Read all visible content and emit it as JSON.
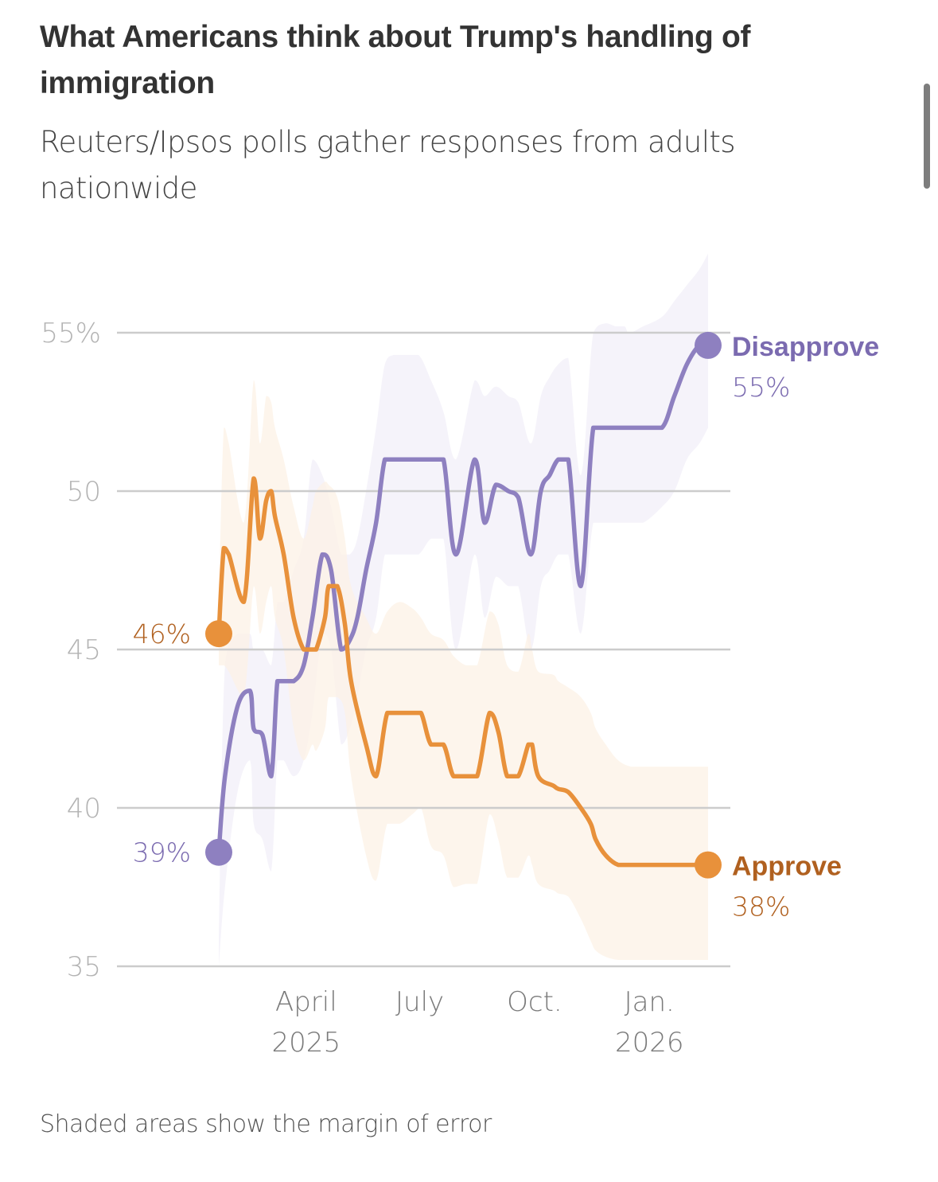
{
  "header": {
    "title": "What Americans think about Trump's handling of immigration",
    "subtitle": "Reuters/Ipsos polls gather responses from adults nationwide"
  },
  "footer": {
    "note": "Shaded areas show the margin of error"
  },
  "colors": {
    "disapprove_line": "#8e80c0",
    "disapprove_text": "#7b6bb0",
    "disapprove_band": "#f1eff8",
    "approve_line": "#e8913b",
    "approve_text": "#b0601f",
    "approve_band": "#fcf1e6",
    "gridline": "#cccccc"
  },
  "chart_data": {
    "type": "line",
    "title": "What Americans think about Trump's handling of immigration",
    "subtitle": "Reuters/Ipsos polls gather responses from adults nationwide",
    "xlabel": "",
    "ylabel": "",
    "x_unit": "days since 2025-01-20",
    "xlim": [
      0,
      392
    ],
    "ylim": [
      35,
      57
    ],
    "grid": true,
    "y_ticks": [
      {
        "value": 55,
        "label": "55%"
      },
      {
        "value": 50,
        "label": "50"
      },
      {
        "value": 45,
        "label": "45"
      },
      {
        "value": 40,
        "label": "40"
      },
      {
        "value": 35,
        "label": "35"
      }
    ],
    "x_ticks": [
      {
        "value": 70,
        "label": [
          "April",
          "2025"
        ]
      },
      {
        "value": 161,
        "label": [
          "July",
          ""
        ]
      },
      {
        "value": 253,
        "label": [
          "Oct.",
          ""
        ]
      },
      {
        "value": 345,
        "label": [
          "Jan.",
          "2026"
        ]
      }
    ],
    "annotation": "Shaded areas show the margin of error",
    "series": [
      {
        "name": "Disapprove",
        "start_label": "39%",
        "end_label": "55%",
        "x": [
          0,
          5,
          15,
          25,
          28,
          35,
          42,
          47,
          52,
          60,
          68,
          75,
          83,
          90,
          98,
          105,
          111,
          118,
          126,
          133,
          140,
          149,
          160,
          170,
          180,
          190,
          205,
          213,
          222,
          232,
          240,
          250,
          258,
          265,
          272,
          280,
          290,
          300,
          310,
          318,
          325,
          329,
          340,
          355,
          365,
          375,
          385,
          392
        ],
        "values": [
          38.6,
          41.0,
          43.2,
          43.7,
          42.5,
          42.3,
          41.0,
          44.0,
          44.0,
          44.0,
          44.5,
          46.0,
          48.0,
          47.5,
          45.0,
          45.3,
          46.0,
          47.5,
          49.0,
          51.0,
          51.0,
          51.0,
          51.0,
          51.0,
          51.0,
          48.0,
          51.0,
          49.0,
          50.2,
          50.0,
          49.8,
          48.0,
          50.0,
          50.5,
          51.0,
          51.0,
          47.0,
          52.0,
          52.0,
          52.0,
          52.0,
          52.0,
          52.0,
          52.0,
          53.0,
          54.0,
          54.6,
          54.6
        ],
        "moe_upper": [
          36.0,
          44.5,
          45.5,
          45.5,
          45.0,
          45.0,
          44.5,
          46.5,
          46.5,
          47.5,
          48.5,
          51.0,
          50.5,
          49.5,
          48.0,
          48.0,
          48.5,
          50.0,
          52.0,
          54.0,
          54.3,
          54.3,
          54.3,
          53.5,
          52.5,
          51.0,
          53.5,
          53.0,
          53.3,
          53.0,
          52.8,
          51.5,
          53.0,
          53.6,
          54.0,
          54.2,
          50.5,
          55.0,
          55.3,
          55.2,
          55.2,
          55.0,
          55.2,
          55.5,
          56.0,
          56.5,
          57.0,
          57.5
        ],
        "moe_lower": [
          35.0,
          37.5,
          40.5,
          41.5,
          39.5,
          39.0,
          38.0,
          41.5,
          41.5,
          41.0,
          41.5,
          43.0,
          45.5,
          45.0,
          42.0,
          42.5,
          43.5,
          45.0,
          46.0,
          48.0,
          48.0,
          48.0,
          48.0,
          48.5,
          48.5,
          45.0,
          48.0,
          46.0,
          47.3,
          47.0,
          47.0,
          45.0,
          47.0,
          47.5,
          48.0,
          48.0,
          45.5,
          49.0,
          49.0,
          49.0,
          49.0,
          49.0,
          49.0,
          49.5,
          50.0,
          51.0,
          51.5,
          52.0
        ]
      },
      {
        "name": "Approve",
        "start_label": "46%",
        "end_label": "38%",
        "x": [
          0,
          4,
          8,
          20,
          28,
          33,
          38,
          42,
          45,
          52,
          60,
          68,
          75,
          78,
          85,
          88,
          95,
          101,
          106,
          118,
          126,
          135,
          145,
          155,
          162,
          170,
          180,
          188,
          198,
          207,
          217,
          224,
          231,
          240,
          248,
          251,
          256,
          268,
          272,
          280,
          290,
          298,
          302,
          310,
          320,
          330,
          335,
          355,
          365,
          375,
          385,
          392
        ],
        "values": [
          45.5,
          48.2,
          48.0,
          46.5,
          50.4,
          48.5,
          49.7,
          50.0,
          49.2,
          48.0,
          46.0,
          45.0,
          45.0,
          45.0,
          46.0,
          47.0,
          47.0,
          45.8,
          44.0,
          42.0,
          41.0,
          43.0,
          43.0,
          43.0,
          43.0,
          42.0,
          42.0,
          41.0,
          41.0,
          41.0,
          43.0,
          42.4,
          41.0,
          41.0,
          42.0,
          42.0,
          41.0,
          40.7,
          40.6,
          40.5,
          40.0,
          39.5,
          39.0,
          38.5,
          38.2,
          38.2,
          38.2,
          38.2,
          38.2,
          38.2,
          38.2,
          38.2
        ],
        "moe_upper": [
          46.5,
          52.0,
          51.5,
          49.0,
          53.5,
          51.5,
          53.0,
          52.8,
          52.0,
          51.0,
          49.5,
          48.5,
          49.5,
          50.0,
          50.3,
          50.2,
          49.8,
          48.5,
          47.0,
          46.0,
          45.5,
          46.2,
          46.5,
          46.3,
          46.0,
          45.5,
          45.3,
          44.8,
          44.5,
          44.5,
          46.2,
          45.8,
          44.5,
          44.3,
          45.5,
          45.0,
          44.3,
          44.2,
          44.0,
          43.8,
          43.5,
          43.0,
          42.5,
          42.0,
          41.5,
          41.3,
          41.3,
          41.3,
          41.3,
          41.3,
          41.3,
          41.3
        ],
        "moe_lower": [
          44.5,
          44.5,
          44.3,
          43.5,
          47.0,
          45.5,
          46.5,
          47.0,
          46.0,
          45.0,
          42.5,
          41.5,
          42.0,
          41.8,
          42.5,
          43.5,
          43.5,
          43.0,
          41.0,
          38.5,
          37.7,
          39.5,
          39.5,
          39.8,
          40.0,
          38.8,
          38.5,
          37.5,
          37.6,
          37.6,
          39.8,
          39.0,
          37.8,
          37.8,
          38.5,
          38.2,
          37.6,
          37.4,
          37.3,
          37.2,
          36.5,
          35.8,
          35.5,
          35.3,
          35.2,
          35.2,
          35.2,
          35.2,
          35.2,
          35.2,
          35.2,
          35.2
        ]
      }
    ],
    "legend": "direct labels at line ends (right)"
  }
}
